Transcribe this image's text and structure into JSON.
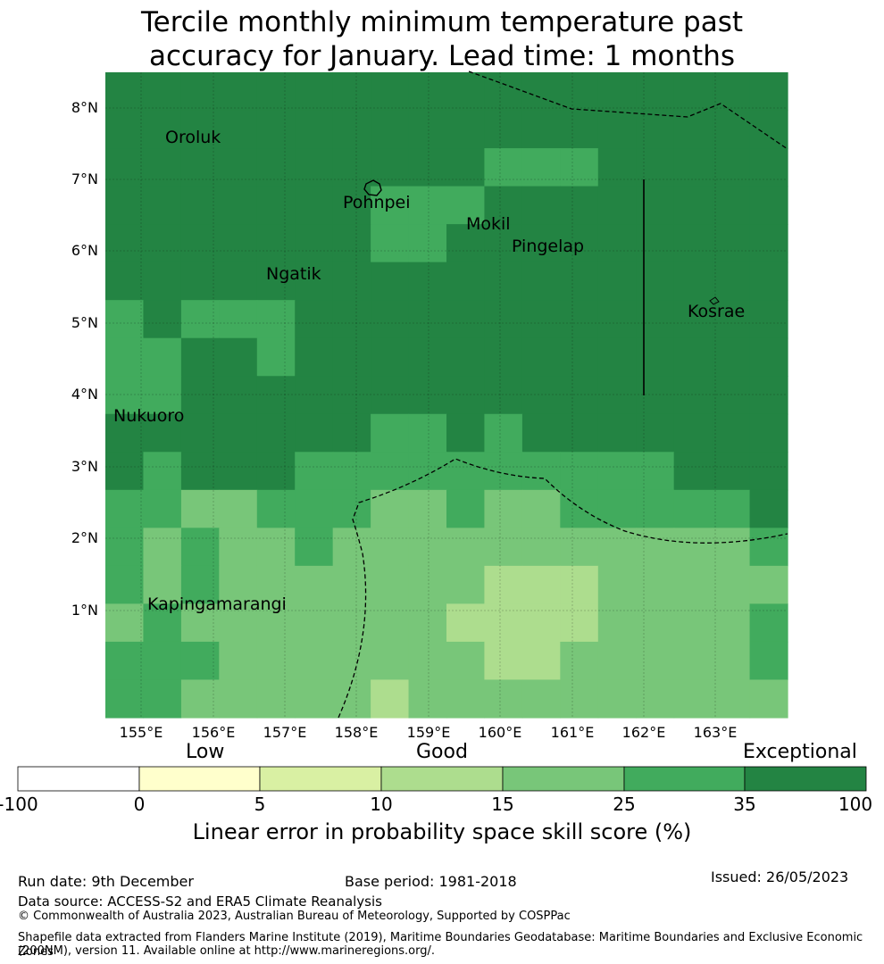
{
  "title_line1": "Tercile monthly minimum temperature past",
  "title_line2": "accuracy for January. Lead time: 1 months",
  "lat_labels": [
    "8°N",
    "7°N",
    "6°N",
    "5°N",
    "4°N",
    "3°N",
    "2°N",
    "1°N"
  ],
  "lon_labels": [
    "155°E",
    "156°E",
    "157°E",
    "158°E",
    "159°E",
    "160°E",
    "161°E",
    "162°E",
    "163°E"
  ],
  "places": [
    "Oroluk",
    "Pohnpei",
    "Mokil",
    "Pingelap",
    "Ngatik",
    "Kosrae",
    "Nukuoro",
    "Kapingamarangi"
  ],
  "colorbar": {
    "categories": [
      "Low",
      "Good",
      "Exceptional"
    ],
    "ticks": [
      "-100",
      "0",
      "5",
      "10",
      "15",
      "25",
      "35",
      "100"
    ],
    "colors": [
      "#ffffff",
      "#ffffcc",
      "#d9f0a3",
      "#addd8e",
      "#78c679",
      "#41ab5d",
      "#238443"
    ],
    "title": "Linear error in probability space skill score (%)"
  },
  "footer": {
    "run_date": "Run date: 9th December",
    "base_period": "Base period: 1981-2018",
    "issued": "Issued: 26/05/2023",
    "data_source": "Data source: ACCESS-S2 and ERA5 Climate Reanalysis",
    "copyright": "© Commonwealth of Australia 2023, Australian Bureau of Meteorology, Supported by COSPPac",
    "shapefile_line1": "Shapefile data extracted from Flanders Marine Institute (2019), Maritime Boundaries Geodatabase: Maritime Boundaries and Exclusive Economic Zones",
    "shapefile_line2": "(200NM), version 11. Available online at http://www.marineregions.org/."
  },
  "grid_data": {
    "description_levels": "cell values are colour class indices 0-6 matching colorbar.colors",
    "rows": [
      [
        6,
        6,
        6,
        6,
        6,
        6,
        6,
        6,
        6,
        6,
        6,
        6,
        6,
        6,
        6,
        6,
        6,
        6
      ],
      [
        6,
        6,
        6,
        6,
        6,
        6,
        6,
        6,
        6,
        6,
        6,
        6,
        6,
        6,
        6,
        6,
        6,
        6
      ],
      [
        6,
        6,
        6,
        6,
        6,
        6,
        6,
        6,
        6,
        6,
        5,
        5,
        5,
        6,
        6,
        6,
        6,
        6
      ],
      [
        6,
        6,
        6,
        6,
        6,
        6,
        6,
        5,
        5,
        5,
        6,
        6,
        6,
        6,
        6,
        6,
        6,
        6
      ],
      [
        6,
        6,
        6,
        6,
        6,
        6,
        6,
        5,
        5,
        6,
        6,
        6,
        6,
        6,
        6,
        6,
        6,
        6
      ],
      [
        6,
        6,
        6,
        6,
        6,
        6,
        6,
        6,
        6,
        6,
        6,
        6,
        6,
        6,
        6,
        6,
        6,
        6
      ],
      [
        5,
        6,
        5,
        5,
        5,
        6,
        6,
        6,
        6,
        6,
        6,
        6,
        6,
        6,
        6,
        6,
        6,
        6
      ],
      [
        5,
        5,
        6,
        6,
        5,
        6,
        6,
        6,
        6,
        6,
        6,
        6,
        6,
        6,
        6,
        6,
        6,
        6
      ],
      [
        5,
        5,
        6,
        6,
        6,
        6,
        6,
        6,
        6,
        6,
        6,
        6,
        6,
        6,
        6,
        6,
        6,
        6
      ],
      [
        6,
        6,
        6,
        6,
        6,
        6,
        6,
        5,
        5,
        6,
        5,
        6,
        6,
        6,
        6,
        6,
        6,
        6
      ],
      [
        6,
        5,
        6,
        6,
        6,
        5,
        5,
        5,
        5,
        5,
        5,
        5,
        5,
        5,
        5,
        6,
        6,
        6
      ],
      [
        5,
        5,
        4,
        4,
        5,
        5,
        5,
        4,
        4,
        5,
        4,
        4,
        5,
        5,
        5,
        5,
        5,
        6
      ],
      [
        5,
        4,
        5,
        4,
        4,
        5,
        4,
        4,
        4,
        4,
        4,
        4,
        4,
        4,
        4,
        4,
        4,
        5
      ],
      [
        5,
        4,
        5,
        4,
        4,
        4,
        4,
        4,
        4,
        4,
        3,
        3,
        3,
        4,
        4,
        4,
        4,
        4
      ],
      [
        4,
        5,
        4,
        4,
        4,
        4,
        4,
        4,
        4,
        3,
        3,
        3,
        3,
        4,
        4,
        4,
        4,
        5
      ],
      [
        5,
        5,
        5,
        4,
        4,
        4,
        4,
        4,
        4,
        4,
        3,
        3,
        4,
        4,
        4,
        4,
        4,
        5
      ],
      [
        5,
        5,
        4,
        4,
        4,
        4,
        4,
        3,
        4,
        4,
        4,
        4,
        4,
        4,
        4,
        4,
        4,
        4
      ]
    ]
  }
}
